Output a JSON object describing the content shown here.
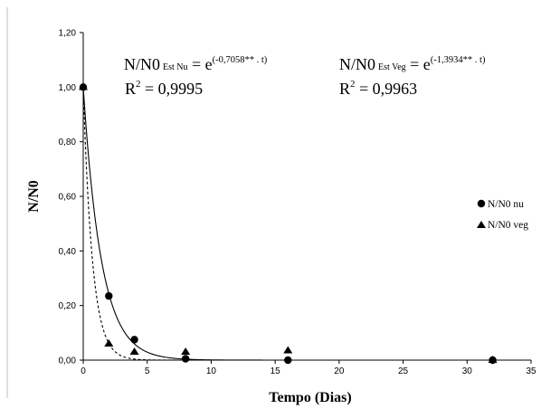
{
  "chart_data": {
    "type": "scatter",
    "xlabel": "Tempo (Dias)",
    "ylabel": "N/N0",
    "xlim": [
      0,
      35
    ],
    "ylim": [
      0,
      1.2
    ],
    "x_ticks": [
      "0",
      "5",
      "10",
      "15",
      "20",
      "25",
      "30",
      "35"
    ],
    "y_ticks": [
      "0,00",
      "0,20",
      "0,40",
      "0,60",
      "0,80",
      "1,00",
      "1,20"
    ],
    "grid": false,
    "legend_position": "right",
    "series": [
      {
        "name": "N/N0 nu",
        "marker": "circle",
        "points": [
          [
            0,
            1.0
          ],
          [
            2,
            0.235
          ],
          [
            4,
            0.075
          ],
          [
            8,
            0.005
          ],
          [
            16,
            0.0
          ],
          [
            32,
            0.0
          ]
        ],
        "fit": {
          "k": 0.7058,
          "line": "solid"
        }
      },
      {
        "name": "N/N0 veg",
        "marker": "triangle",
        "points": [
          [
            0,
            1.0
          ],
          [
            2,
            0.06
          ],
          [
            4,
            0.03
          ],
          [
            8,
            0.03
          ],
          [
            16,
            0.035
          ],
          [
            32,
            0.0
          ]
        ],
        "fit": {
          "k": 1.3934,
          "line": "dashed"
        }
      }
    ],
    "annotations": {
      "eq_nu": {
        "lhs": "N/N0",
        "sub": "Est Nu",
        "mid": " = e",
        "sup": "(-0,7058** . t)",
        "r2_prefix": "R",
        "r2_exp": "2",
        "r2_val": " = 0,9995"
      },
      "eq_veg": {
        "lhs": "N/N0",
        "sub": "Est Veg",
        "mid": " = e",
        "sup": "(-1,3934** . t)",
        "r2_prefix": "R",
        "r2_exp": "2",
        "r2_val": " = 0,9963"
      }
    }
  }
}
